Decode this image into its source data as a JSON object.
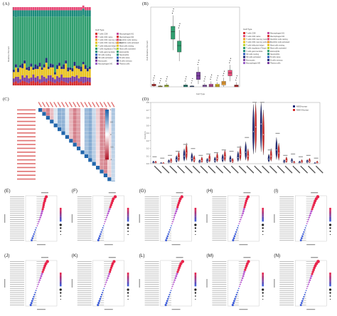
{
  "figure": {
    "panel_letters": [
      "(A)",
      "(B)",
      "(C)",
      "(D)",
      "(E)",
      "(F)",
      "(G)",
      "(H)",
      "(I)",
      "(J)",
      "(K)",
      "(L)",
      "(M)",
      "(N)"
    ],
    "legend_title": "Cell Type",
    "celltypes": [
      "T cells CD8",
      "T cells CD4 naive",
      "T cells CD4 memory resting",
      "T cells CD4 memory activated",
      "T cells follicular helper",
      "T cells regulatory (Tregs)",
      "T cells gamma delta",
      "NK cells resting",
      "NK cells activated",
      "Monocytes",
      "Macrophages M0",
      "Macrophages M1",
      "Macrophages M2",
      "Dendritic cells resting",
      "Dendritic cells activated",
      "Mast cells resting",
      "Mast cells activated",
      "Eosinophils",
      "Neutrophils",
      "B cells naive",
      "B cells memory",
      "Plasma cells"
    ],
    "colors": {
      "green_main": "#2f9e6f",
      "teal": "#1b8a7a",
      "yellow": "#e8c320",
      "red": "#d62b2b",
      "purple": "#7b3fa0",
      "blue": "#2f5fbf",
      "navy": "#1f2a7a",
      "pink": "#e84a78",
      "heat_low": "#b2182b",
      "heat_high": "#2166ac"
    }
  },
  "panelA": {
    "ylabel": "Relative Percent",
    "chart_data": {
      "type": "bar",
      "stacked": true,
      "n_samples": 36,
      "series": [
        {
          "color": "#d62b2b",
          "values": [
            0.04,
            0.05,
            0.03,
            0.04,
            0.06,
            0.05,
            0.04,
            0.03,
            0.05,
            0.06,
            0.04,
            0.05,
            0.03,
            0.04,
            0.05,
            0.04,
            0.06,
            0.05,
            0.04,
            0.03,
            0.05,
            0.04,
            0.06,
            0.05,
            0.04,
            0.03,
            0.05,
            0.04,
            0.05,
            0.06,
            0.04,
            0.05,
            0.03,
            0.04,
            0.05,
            0.04
          ]
        },
        {
          "color": "#7b3fa0",
          "values": [
            0.05,
            0.06,
            0.08,
            0.04,
            0.07,
            0.05,
            0.09,
            0.06,
            0.05,
            0.08,
            0.06,
            0.07,
            0.05,
            0.09,
            0.06,
            0.05,
            0.07,
            0.08,
            0.06,
            0.05,
            0.07,
            0.06,
            0.08,
            0.05,
            0.06,
            0.07,
            0.05,
            0.08,
            0.06,
            0.07,
            0.05,
            0.06,
            0.08,
            0.07,
            0.05,
            0.06
          ]
        },
        {
          "color": "#e8c320",
          "values": [
            0.08,
            0.12,
            0.06,
            0.15,
            0.09,
            0.18,
            0.07,
            0.1,
            0.14,
            0.06,
            0.11,
            0.09,
            0.16,
            0.07,
            0.12,
            0.2,
            0.08,
            0.1,
            0.13,
            0.06,
            0.09,
            0.15,
            0.07,
            0.11,
            0.18,
            0.08,
            0.1,
            0.06,
            0.14,
            0.09,
            0.12,
            0.07,
            0.16,
            0.1,
            0.08,
            0.11
          ]
        },
        {
          "color": "#1f2a7a",
          "values": [
            0.03,
            0.04,
            0.05,
            0.03,
            0.06,
            0.04,
            0.03,
            0.05,
            0.04,
            0.03,
            0.06,
            0.04,
            0.05,
            0.03,
            0.04,
            0.06,
            0.03,
            0.05,
            0.04,
            0.03,
            0.05,
            0.04,
            0.03,
            0.06,
            0.04,
            0.05,
            0.03,
            0.04,
            0.05,
            0.03,
            0.04,
            0.06,
            0.03,
            0.05,
            0.04,
            0.03
          ]
        },
        {
          "color": "#2f9e6f",
          "values": [
            0.68,
            0.6,
            0.66,
            0.62,
            0.6,
            0.56,
            0.65,
            0.64,
            0.6,
            0.65,
            0.61,
            0.63,
            0.59,
            0.65,
            0.61,
            0.53,
            0.64,
            0.6,
            0.61,
            0.71,
            0.62,
            0.59,
            0.64,
            0.61,
            0.56,
            0.65,
            0.65,
            0.66,
            0.58,
            0.63,
            0.63,
            0.64,
            0.6,
            0.62,
            0.66,
            0.64
          ]
        },
        {
          "color": "#1b8a7a",
          "values": [
            0.08,
            0.09,
            0.08,
            0.08,
            0.08,
            0.08,
            0.08,
            0.08,
            0.08,
            0.08,
            0.08,
            0.08,
            0.08,
            0.08,
            0.08,
            0.08,
            0.08,
            0.08,
            0.08,
            0.08,
            0.08,
            0.08,
            0.08,
            0.08,
            0.08,
            0.08,
            0.08,
            0.08,
            0.08,
            0.08,
            0.08,
            0.08,
            0.08,
            0.08,
            0.08,
            0.08
          ]
        },
        {
          "color": "#e84a78",
          "values": [
            0.04,
            0.04,
            0.04,
            0.04,
            0.04,
            0.04,
            0.04,
            0.04,
            0.04,
            0.04,
            0.04,
            0.04,
            0.04,
            0.04,
            0.04,
            0.04,
            0.04,
            0.04,
            0.04,
            0.04,
            0.04,
            0.04,
            0.04,
            0.04,
            0.04,
            0.04,
            0.04,
            0.04,
            0.04,
            0.04,
            0.04,
            0.04,
            0.04,
            0.04,
            0.04,
            0.04
          ]
        }
      ]
    }
  },
  "panelB": {
    "ylabel": "Cell Relative Percent",
    "xlabel": "Cell Type",
    "chart_data": {
      "type": "box",
      "boxes": [
        {
          "color": "#d62b2b",
          "q1": 0.01,
          "med": 0.02,
          "q3": 0.03,
          "lo": 0.0,
          "hi": 0.05
        },
        {
          "color": "#e8c320",
          "q1": 0.0,
          "med": 0.005,
          "q3": 0.01,
          "lo": 0.0,
          "hi": 0.02
        },
        {
          "color": "#b8d430",
          "q1": 0.0,
          "med": 0.01,
          "q3": 0.02,
          "lo": 0.0,
          "hi": 0.04
        },
        {
          "color": "#2f9e6f",
          "q1": 0.52,
          "med": 0.6,
          "q3": 0.66,
          "lo": 0.4,
          "hi": 0.78
        },
        {
          "color": "#2f9e6f",
          "q1": 0.38,
          "med": 0.45,
          "q3": 0.5,
          "lo": 0.28,
          "hi": 0.62
        },
        {
          "color": "#1b8a7a",
          "q1": 0.0,
          "med": 0.01,
          "q3": 0.02,
          "lo": 0.0,
          "hi": 0.04
        },
        {
          "color": "#2f5fbf",
          "q1": 0.0,
          "med": 0.005,
          "q3": 0.01,
          "lo": 0.0,
          "hi": 0.02
        },
        {
          "color": "#7b3fa0",
          "q1": 0.08,
          "med": 0.12,
          "q3": 0.16,
          "lo": 0.03,
          "hi": 0.22
        },
        {
          "color": "#9d64c8",
          "q1": 0.0,
          "med": 0.01,
          "q3": 0.02,
          "lo": 0.0,
          "hi": 0.04
        },
        {
          "color": "#c44ea0",
          "q1": 0.0,
          "med": 0.01,
          "q3": 0.03,
          "lo": 0.0,
          "hi": 0.06
        },
        {
          "color": "#e8c320",
          "q1": 0.0,
          "med": 0.01,
          "q3": 0.03,
          "lo": 0.0,
          "hi": 0.05
        },
        {
          "color": "#f0a030",
          "q1": 0.02,
          "med": 0.04,
          "q3": 0.06,
          "lo": 0.0,
          "hi": 0.1
        },
        {
          "color": "#e84a78",
          "q1": 0.12,
          "med": 0.15,
          "q3": 0.18,
          "lo": 0.06,
          "hi": 0.24
        },
        {
          "color": "#d62b2b",
          "q1": 0.0,
          "med": 0.01,
          "q3": 0.02,
          "lo": 0.0,
          "hi": 0.05
        }
      ]
    }
  },
  "panelC": {
    "scale_ticks": [
      "1",
      "0.5",
      "0",
      "-0.5",
      "-1"
    ]
  },
  "panelD": {
    "ylabel": "Fraction",
    "legend": [
      "MSS-tumor",
      "MSI-H-tumor"
    ],
    "yticks": [
      "0.0",
      "0.1",
      "0.2",
      "0.3",
      "0.4",
      "0.5",
      "0.6",
      "0.7",
      "0.8"
    ],
    "chart_data": {
      "type": "violin",
      "ylim": [
        0,
        0.8
      ],
      "groups": [
        {
          "a": 0.01,
          "b": 0.01
        },
        {
          "a": 0.0,
          "b": 0.0
        },
        {
          "a": 0.02,
          "b": 0.03
        },
        {
          "a": 0.05,
          "b": 0.08
        },
        {
          "a": 0.1,
          "b": 0.14
        },
        {
          "a": 0.07,
          "b": 0.05
        },
        {
          "a": 0.02,
          "b": 0.04
        },
        {
          "a": 0.03,
          "b": 0.06
        },
        {
          "a": 0.04,
          "b": 0.07
        },
        {
          "a": 0.06,
          "b": 0.09
        },
        {
          "a": 0.05,
          "b": 0.03
        },
        {
          "a": 0.08,
          "b": 0.12
        },
        {
          "a": 0.15,
          "b": 0.1
        },
        {
          "a": 0.42,
          "b": 0.48
        },
        {
          "a": 0.52,
          "b": 0.38
        },
        {
          "a": 0.06,
          "b": 0.1
        },
        {
          "a": 0.18,
          "b": 0.14
        },
        {
          "a": 0.02,
          "b": 0.04
        },
        {
          "a": 0.03,
          "b": 0.01
        },
        {
          "a": 0.01,
          "b": 0.02
        },
        {
          "a": 0.02,
          "b": 0.03
        },
        {
          "a": 0.0,
          "b": 0.01
        }
      ]
    }
  },
  "lollipops": [
    {
      "letter": "(E)",
      "values": [
        0.52,
        0.46,
        0.44,
        0.4,
        0.38,
        0.36,
        0.33,
        0.3,
        0.27,
        0.24,
        0.2,
        0.16,
        0.12,
        0.08,
        0.04,
        -0.02,
        -0.06,
        -0.1,
        -0.14,
        -0.18,
        -0.22,
        -0.26
      ]
    },
    {
      "letter": "(F)",
      "values": [
        0.6,
        0.5,
        0.46,
        0.42,
        0.38,
        0.34,
        0.3,
        0.26,
        0.22,
        0.18,
        0.14,
        0.1,
        0.06,
        0.02,
        -0.02,
        -0.06,
        -0.1,
        -0.14,
        -0.18,
        -0.22,
        -0.26,
        -0.3
      ]
    },
    {
      "letter": "(G)",
      "values": [
        0.56,
        0.48,
        0.44,
        0.4,
        0.36,
        0.33,
        0.3,
        0.26,
        0.22,
        0.18,
        0.15,
        0.12,
        0.08,
        0.04,
        0.0,
        -0.04,
        -0.08,
        -0.12,
        -0.16,
        -0.2,
        -0.24,
        -0.28
      ]
    },
    {
      "letter": "(H)",
      "values": [
        0.5,
        0.44,
        0.4,
        0.37,
        0.34,
        0.31,
        0.28,
        0.25,
        0.22,
        0.18,
        0.14,
        0.1,
        0.06,
        0.02,
        -0.02,
        -0.06,
        -0.1,
        -0.14,
        -0.18,
        -0.22,
        -0.26,
        -0.3
      ]
    },
    {
      "letter": "(I)",
      "values": [
        0.62,
        0.54,
        0.48,
        0.44,
        0.4,
        0.36,
        0.32,
        0.28,
        0.24,
        0.2,
        0.16,
        0.12,
        0.08,
        0.04,
        0.0,
        -0.04,
        -0.08,
        -0.12,
        -0.16,
        -0.2,
        -0.24,
        -0.28
      ]
    },
    {
      "letter": "(J)",
      "values": [
        0.58,
        0.5,
        0.45,
        0.41,
        0.37,
        0.33,
        0.29,
        0.25,
        0.21,
        0.17,
        0.13,
        0.09,
        0.05,
        0.01,
        -0.03,
        -0.07,
        -0.11,
        -0.15,
        -0.19,
        -0.23,
        -0.27,
        -0.31
      ]
    },
    {
      "letter": "(K)",
      "values": [
        0.54,
        0.47,
        0.43,
        0.39,
        0.35,
        0.32,
        0.28,
        0.24,
        0.2,
        0.16,
        0.12,
        0.08,
        0.04,
        0.0,
        -0.04,
        -0.08,
        -0.12,
        -0.16,
        -0.2,
        -0.24,
        -0.28,
        -0.32
      ]
    },
    {
      "letter": "(L)",
      "values": [
        0.6,
        0.51,
        0.46,
        0.42,
        0.38,
        0.34,
        0.3,
        0.26,
        0.22,
        0.18,
        0.14,
        0.1,
        0.06,
        0.02,
        -0.02,
        -0.06,
        -0.1,
        -0.14,
        -0.18,
        -0.22,
        -0.26,
        -0.3
      ]
    },
    {
      "letter": "(M)",
      "values": [
        0.52,
        0.46,
        0.42,
        0.38,
        0.34,
        0.3,
        0.27,
        0.24,
        0.2,
        0.16,
        0.12,
        0.08,
        0.04,
        0.0,
        -0.04,
        -0.08,
        -0.12,
        -0.16,
        -0.2,
        -0.24,
        -0.28,
        -0.32
      ]
    },
    {
      "letter": "(N)",
      "values": [
        0.64,
        0.55,
        0.49,
        0.44,
        0.4,
        0.36,
        0.32,
        0.28,
        0.24,
        0.2,
        0.16,
        0.12,
        0.08,
        0.04,
        0.0,
        -0.04,
        -0.08,
        -0.12,
        -0.16,
        -0.2,
        -0.24,
        -0.28
      ]
    }
  ]
}
